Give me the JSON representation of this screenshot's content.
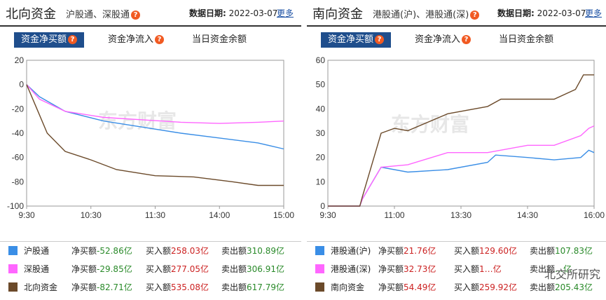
{
  "north": {
    "title": "北向资金",
    "subtitle": "沪股通、深股通",
    "help": "?",
    "date_label": "数据日期:",
    "date": "2022-03-07",
    "more": "更多",
    "tabs": [
      "资金净买额",
      "资金净流入",
      "当日资金余额"
    ],
    "watermark": "东方财富",
    "legend": [
      {
        "name": "沪股通",
        "net_label": "净买额",
        "net": "-52.86亿",
        "buy_label": "买入额",
        "buy": "258.03亿",
        "sell_label": "卖出额",
        "sell": "310.89亿",
        "color": "#3a8ee6"
      },
      {
        "name": "深股通",
        "net_label": "净买额",
        "net": "-29.85亿",
        "buy_label": "买入额",
        "buy": "277.05亿",
        "sell_label": "卖出额",
        "sell": "306.91亿",
        "color": "#ff66ff"
      },
      {
        "name": "北向资金",
        "net_label": "净买额",
        "net": "-82.71亿",
        "buy_label": "买入额",
        "buy": "535.08亿",
        "sell_label": "卖出额",
        "sell": "617.79亿",
        "color": "#6b4a2a"
      }
    ]
  },
  "south": {
    "title": "南向资金",
    "subtitle": "港股通(沪)、港股通(深)",
    "help": "?",
    "date_label": "数据日期:",
    "date": "2022-03-07",
    "more": "更多",
    "tabs": [
      "资金净买额",
      "资金净流入",
      "当日资金余额"
    ],
    "watermark": "东方财富",
    "legend": [
      {
        "name": "港股通(沪)",
        "net_label": "净买额",
        "net": "21.76亿",
        "buy_label": "买入额",
        "buy": "129.60亿",
        "sell_label": "卖出额",
        "sell": "107.83亿",
        "color": "#3a8ee6"
      },
      {
        "name": "港股通(深)",
        "net_label": "净买额",
        "net": "32.73亿",
        "buy_label": "买入额",
        "buy": "1…亿",
        "sell_label": "卖出额",
        "sell": "…亿",
        "color": "#ff66ff"
      },
      {
        "name": "南向资金",
        "net_label": "净买额",
        "net": "54.49亿",
        "buy_label": "买入额",
        "buy": "259.92亿",
        "sell_label": "卖出额",
        "sell": "205.43亿",
        "color": "#6b4a2a"
      }
    ],
    "overlay": "北交所研究"
  },
  "chart_data": [
    {
      "type": "line",
      "x_ticks": [
        "9:30",
        "10:30",
        "11:30",
        "14:00",
        "15:00"
      ],
      "y_ticks": [
        20,
        0,
        -20,
        -40,
        -60,
        -80,
        -100
      ],
      "ylim": [
        -100,
        20
      ],
      "series": [
        {
          "name": "沪股通",
          "color": "#3a8ee6",
          "points": [
            [
              0,
              0
            ],
            [
              0.05,
              -10
            ],
            [
              0.15,
              -22
            ],
            [
              0.3,
              -30
            ],
            [
              0.45,
              -35
            ],
            [
              0.6,
              -40
            ],
            [
              0.75,
              -44
            ],
            [
              0.9,
              -48
            ],
            [
              1.0,
              -53
            ]
          ]
        },
        {
          "name": "深股通",
          "color": "#ff66ff",
          "points": [
            [
              0,
              0
            ],
            [
              0.05,
              -12
            ],
            [
              0.15,
              -22
            ],
            [
              0.3,
              -27
            ],
            [
              0.45,
              -29
            ],
            [
              0.6,
              -31
            ],
            [
              0.75,
              -32
            ],
            [
              0.9,
              -31
            ],
            [
              1.0,
              -30
            ]
          ]
        },
        {
          "name": "北向资金",
          "color": "#6b4a2a",
          "points": [
            [
              0,
              0
            ],
            [
              0.04,
              -20
            ],
            [
              0.08,
              -40
            ],
            [
              0.15,
              -55
            ],
            [
              0.25,
              -62
            ],
            [
              0.35,
              -70
            ],
            [
              0.5,
              -75
            ],
            [
              0.65,
              -76
            ],
            [
              0.8,
              -80
            ],
            [
              0.9,
              -83
            ],
            [
              1.0,
              -83
            ]
          ]
        }
      ]
    },
    {
      "type": "line",
      "x_ticks": [
        "9:30",
        "11:00",
        "13:30",
        "14:30",
        "16:00"
      ],
      "y_ticks": [
        60,
        50,
        40,
        30,
        20,
        10,
        0
      ],
      "ylim": [
        0,
        60
      ],
      "series": [
        {
          "name": "港股通(沪)",
          "color": "#3a8ee6",
          "points": [
            [
              0,
              0
            ],
            [
              0.12,
              0
            ],
            [
              0.13,
              3
            ],
            [
              0.2,
              16
            ],
            [
              0.3,
              14
            ],
            [
              0.45,
              15
            ],
            [
              0.6,
              18
            ],
            [
              0.63,
              21
            ],
            [
              0.75,
              20
            ],
            [
              0.85,
              19
            ],
            [
              0.95,
              20
            ],
            [
              0.98,
              23
            ],
            [
              1.0,
              22
            ]
          ]
        },
        {
          "name": "港股通(深)",
          "color": "#ff66ff",
          "points": [
            [
              0,
              0
            ],
            [
              0.12,
              0
            ],
            [
              0.13,
              3
            ],
            [
              0.2,
              16
            ],
            [
              0.3,
              17
            ],
            [
              0.45,
              22
            ],
            [
              0.6,
              22
            ],
            [
              0.75,
              25
            ],
            [
              0.85,
              25
            ],
            [
              0.95,
              29
            ],
            [
              0.98,
              32
            ],
            [
              1.0,
              33
            ]
          ]
        },
        {
          "name": "南向资金",
          "color": "#6b4a2a",
          "points": [
            [
              0,
              0
            ],
            [
              0.12,
              0
            ],
            [
              0.13,
              4
            ],
            [
              0.2,
              30
            ],
            [
              0.25,
              32
            ],
            [
              0.3,
              31
            ],
            [
              0.45,
              38
            ],
            [
              0.6,
              41
            ],
            [
              0.65,
              44
            ],
            [
              0.75,
              44
            ],
            [
              0.85,
              44
            ],
            [
              0.93,
              48
            ],
            [
              0.96,
              54
            ],
            [
              1.0,
              54
            ]
          ]
        }
      ]
    }
  ]
}
